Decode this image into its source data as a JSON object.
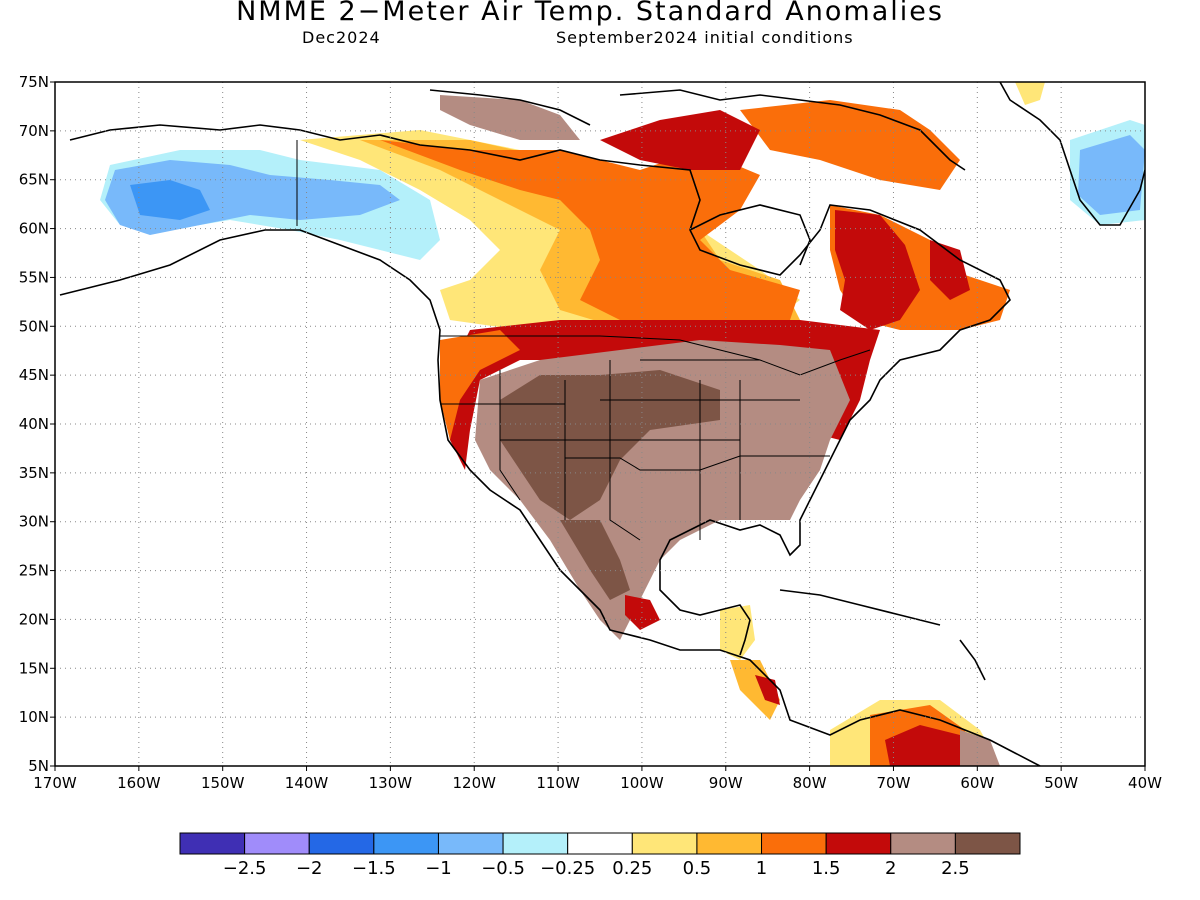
{
  "header": {
    "title": "NMME 2−Meter Air Temp. Standard Anomalies",
    "target_month": "Dec2024",
    "init": "September2024 initial conditions"
  },
  "axes": {
    "lat_labels": [
      "75N",
      "70N",
      "65N",
      "60N",
      "55N",
      "50N",
      "45N",
      "40N",
      "35N",
      "30N",
      "25N",
      "20N",
      "15N",
      "10N",
      "5N"
    ],
    "lon_labels": [
      "170W",
      "160W",
      "150W",
      "140W",
      "130W",
      "120W",
      "110W",
      "100W",
      "90W",
      "80W",
      "70W",
      "60W",
      "50W",
      "40W"
    ]
  },
  "colorbar": {
    "colors": [
      "#3f2fb4",
      "#a08cfa",
      "#2468e6",
      "#3c96f5",
      "#78b9fa",
      "#b4f0fa",
      "#ffffff",
      "#ffe678",
      "#ffb932",
      "#fa6e0a",
      "#c30a0a",
      "#b48c82",
      "#7d5546"
    ],
    "labels": [
      "−2.5",
      "−2",
      "−1.5",
      "−1",
      "−0.5",
      "−0.25",
      "0.25",
      "0.5",
      "1",
      "1.5",
      "2",
      "2.5"
    ]
  },
  "regions": [
    {
      "name": "alaska-negative-anomaly",
      "color": "#78b9fa"
    },
    {
      "name": "greenland-negative-anomaly",
      "color": "#78b9fa"
    },
    {
      "name": "central-us-positive-anomaly",
      "color": "#b48c82"
    },
    {
      "name": "southwest-us-strong-anomaly",
      "color": "#7d5546"
    },
    {
      "name": "canada-positive-anomaly",
      "color": "#fa6e0a"
    },
    {
      "name": "quebec-strong-anomaly",
      "color": "#c30a0a"
    }
  ]
}
